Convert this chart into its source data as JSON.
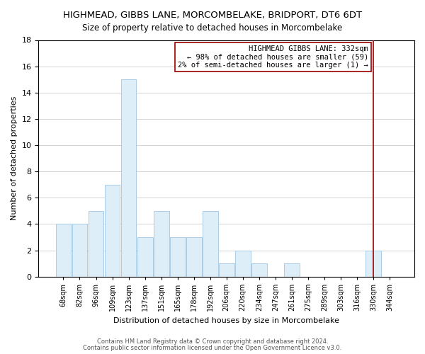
{
  "title": "HIGHMEAD, GIBBS LANE, MORCOMBELAKE, BRIDPORT, DT6 6DT",
  "subtitle": "Size of property relative to detached houses in Morcombelake",
  "xlabel": "Distribution of detached houses by size in Morcombelake",
  "ylabel": "Number of detached properties",
  "bar_color": "#ddeef8",
  "bar_edge_color": "#aacce8",
  "categories": [
    "68sqm",
    "82sqm",
    "96sqm",
    "109sqm",
    "123sqm",
    "137sqm",
    "151sqm",
    "165sqm",
    "178sqm",
    "192sqm",
    "206sqm",
    "220sqm",
    "234sqm",
    "247sqm",
    "261sqm",
    "275sqm",
    "289sqm",
    "303sqm",
    "316sqm",
    "330sqm",
    "344sqm"
  ],
  "values": [
    4,
    4,
    5,
    7,
    15,
    3,
    5,
    3,
    3,
    5,
    1,
    2,
    1,
    0,
    1,
    0,
    0,
    0,
    0,
    2,
    0
  ],
  "ylim": [
    0,
    18
  ],
  "yticks": [
    0,
    2,
    4,
    6,
    8,
    10,
    12,
    14,
    16,
    18
  ],
  "annotation_title": "HIGHMEAD GIBBS LANE: 332sqm",
  "annotation_line1": "← 98% of detached houses are smaller (59)",
  "annotation_line2": "2% of semi-detached houses are larger (1) →",
  "reference_line_x_label": "330sqm",
  "reference_line_color": "#990000",
  "footer1": "Contains HM Land Registry data © Crown copyright and database right 2024.",
  "footer2": "Contains public sector information licensed under the Open Government Licence v3.0."
}
